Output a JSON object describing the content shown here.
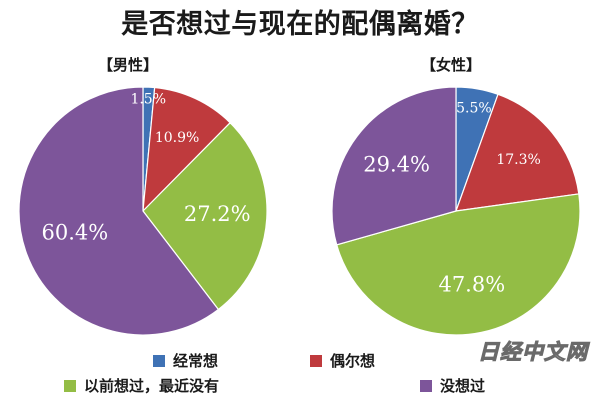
{
  "title": "是否想过与现在的配偶离婚？",
  "watermark": "日经中文网",
  "colors": {
    "blue": "#3f72b5",
    "red": "#bf3a3d",
    "green": "#93bd45",
    "purple": "#7d559a"
  },
  "legend": [
    {
      "label": "经常想",
      "color": "#3f72b5"
    },
    {
      "label": "偶尔想",
      "color": "#bf3a3d"
    },
    {
      "label": "以前想过，最近没有",
      "color": "#93bd45"
    },
    {
      "label": "没想过",
      "color": "#7d559a"
    }
  ],
  "chart_data": [
    {
      "type": "pie",
      "title": "【男性】",
      "categories": [
        "经常想",
        "偶尔想",
        "以前想过，最近没有",
        "没想过"
      ],
      "values": [
        1.5,
        10.9,
        27.2,
        60.4
      ],
      "labels": [
        "1.5%",
        "10.9%",
        "27.2%",
        "60.4%"
      ]
    },
    {
      "type": "pie",
      "title": "【女性】",
      "categories": [
        "经常想",
        "偶尔想",
        "以前想过，最近没有",
        "没想过"
      ],
      "values": [
        5.5,
        17.3,
        47.8,
        29.4
      ],
      "labels": [
        "5.5%",
        "17.3%",
        "47.8%",
        "29.4%"
      ]
    }
  ]
}
